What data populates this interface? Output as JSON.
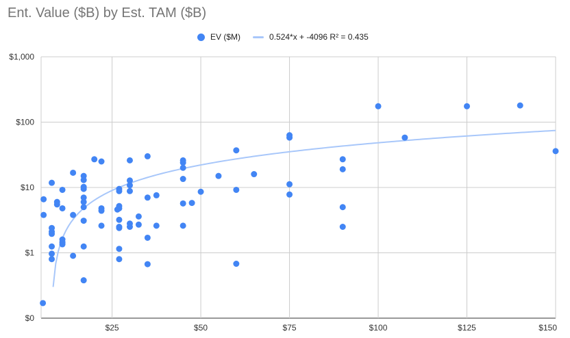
{
  "colors": {
    "points": "#4285f4",
    "trendline": "#a8c7fa",
    "grid": "#cccccc",
    "title": "#757575"
  },
  "chart_data": {
    "type": "scatter",
    "title": "Ent. Value ($B) by Est. TAM ($B)",
    "xlabel": "",
    "ylabel": "",
    "xlim": [
      5,
      150
    ],
    "ylim": [
      0.1,
      1000
    ],
    "y_scale": "log",
    "grid": true,
    "legend_position": "top",
    "x_ticks": [
      {
        "value": 25,
        "label": "$25"
      },
      {
        "value": 50,
        "label": "$50"
      },
      {
        "value": 75,
        "label": "$75"
      },
      {
        "value": 100,
        "label": "$100"
      },
      {
        "value": 125,
        "label": "$125"
      },
      {
        "value": 150,
        "label": "$150"
      }
    ],
    "y_ticks": [
      {
        "value": 0.1,
        "label": "$0"
      },
      {
        "value": 1,
        "label": "$1"
      },
      {
        "value": 10,
        "label": "$10"
      },
      {
        "value": 100,
        "label": "$100"
      },
      {
        "value": 1000,
        "label": "$1,000"
      }
    ],
    "series": [
      {
        "name": "EV ($M)",
        "points": [
          [
            5.5,
            0.17
          ],
          [
            5.7,
            6.6
          ],
          [
            5.7,
            3.8
          ],
          [
            8.0,
            11.8
          ],
          [
            8.0,
            2.4
          ],
          [
            8.0,
            2.1
          ],
          [
            8.0,
            1.95
          ],
          [
            8.0,
            1.25
          ],
          [
            8.0,
            0.97
          ],
          [
            8.0,
            0.8
          ],
          [
            9.5,
            6.0
          ],
          [
            9.5,
            5.5
          ],
          [
            11.0,
            9.2
          ],
          [
            11.0,
            4.8
          ],
          [
            11.0,
            1.6
          ],
          [
            11.0,
            1.45
          ],
          [
            11.0,
            1.35
          ],
          [
            14.0,
            16.8
          ],
          [
            14.0,
            3.8
          ],
          [
            14.0,
            0.9
          ],
          [
            17.0,
            15.0
          ],
          [
            17.0,
            13.0
          ],
          [
            17.0,
            10.2
          ],
          [
            17.0,
            9.5
          ],
          [
            17.0,
            7.0
          ],
          [
            17.0,
            6.0
          ],
          [
            17.0,
            5.0
          ],
          [
            17.0,
            3.1
          ],
          [
            17.0,
            1.25
          ],
          [
            17.0,
            0.38
          ],
          [
            20.0,
            27.0
          ],
          [
            22.0,
            25.0
          ],
          [
            22.0,
            4.8
          ],
          [
            22.0,
            4.4
          ],
          [
            22.0,
            2.6
          ],
          [
            26.5,
            4.6
          ],
          [
            27.0,
            9.5
          ],
          [
            27.0,
            8.8
          ],
          [
            27.0,
            5.2
          ],
          [
            27.0,
            4.8
          ],
          [
            27.0,
            3.2
          ],
          [
            27.0,
            2.5
          ],
          [
            27.0,
            2.4
          ],
          [
            27.0,
            1.15
          ],
          [
            27.0,
            0.8
          ],
          [
            30.0,
            26.0
          ],
          [
            30.0,
            12.8
          ],
          [
            30.0,
            10.8
          ],
          [
            30.0,
            8.8
          ],
          [
            30.0,
            2.8
          ],
          [
            30.0,
            2.5
          ],
          [
            32.5,
            3.6
          ],
          [
            32.5,
            2.7
          ],
          [
            35.0,
            30.0
          ],
          [
            35.0,
            7.0
          ],
          [
            35.0,
            1.7
          ],
          [
            35.0,
            0.67
          ],
          [
            37.5,
            7.6
          ],
          [
            37.5,
            2.6
          ],
          [
            45.0,
            26.0
          ],
          [
            45.0,
            24.0
          ],
          [
            45.0,
            20.0
          ],
          [
            45.0,
            13.5
          ],
          [
            45.0,
            5.7
          ],
          [
            45.0,
            2.6
          ],
          [
            47.5,
            5.8
          ],
          [
            50.0,
            8.6
          ],
          [
            55.0,
            15.0
          ],
          [
            60.0,
            37.0
          ],
          [
            60.0,
            9.2
          ],
          [
            60.0,
            0.68
          ],
          [
            65.0,
            16.0
          ],
          [
            75.0,
            63.0
          ],
          [
            75.0,
            58.0
          ],
          [
            75.0,
            11.2
          ],
          [
            75.0,
            7.8
          ],
          [
            90.0,
            27.0
          ],
          [
            90.0,
            19.0
          ],
          [
            90.0,
            5.0
          ],
          [
            90.0,
            2.5
          ],
          [
            100.0,
            175.0
          ],
          [
            107.5,
            58.0
          ],
          [
            125.0,
            175.0
          ],
          [
            140.0,
            180.0
          ],
          [
            150.0,
            36.0
          ]
        ]
      }
    ],
    "trendline": {
      "name": "0.524*x + -4096 R² = 0.435",
      "slope": 0.524,
      "intercept": -4096,
      "y_units": "$M",
      "x_units": "$B",
      "x_range": [
        5.5,
        150
      ],
      "r_squared": 0.435
    }
  }
}
